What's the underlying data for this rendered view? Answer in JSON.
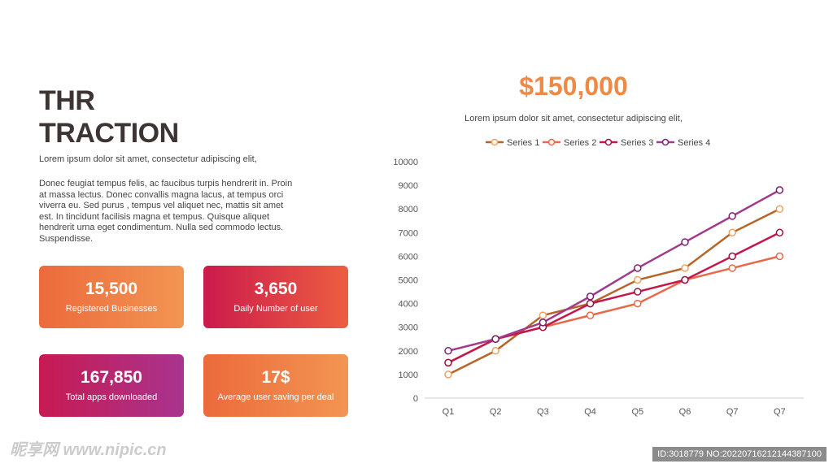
{
  "header": {
    "title_line1": "THR",
    "title_line2": "TRACTION",
    "subtitle": "Lorem ipsum dolor sit amet, consectetur adipiscing elit,",
    "body": "Donec feugiat tempus felis, ac faucibus turpis hendrerit in. Proin at massa lectus. Donec convallis magna lacus, at tempus orci viverra eu. Sed purus , tempus vel aliquet nec, mattis sit amet est. In tincidunt facilisis magna et tempus. Quisque aliquet hendrerit urna eget condimentum. Nulla sed commodo lectus. Suspendisse."
  },
  "cards": [
    {
      "value": "15,500",
      "label": "Registered Businesses"
    },
    {
      "value": "3,650",
      "label": "Daily Number of user"
    },
    {
      "value": "167,850",
      "label": "Total apps downloaded"
    },
    {
      "value": "17$",
      "label": "Average user saving per deal"
    }
  ],
  "highlight": {
    "amount": "$150,000",
    "text": "Lorem ipsum dolor sit amet, consectetur adipiscing elit,"
  },
  "watermark": {
    "logo": "昵享网 www.nipic.cn",
    "id": "ID:3018779 NO:20220716212144387100"
  },
  "chart_data": {
    "type": "line",
    "categories": [
      "Q1",
      "Q2",
      "Q3",
      "Q4",
      "Q5",
      "Q6",
      "Q7",
      "Q7"
    ],
    "ylim": [
      0,
      10000
    ],
    "yticks": [
      "0",
      "1000",
      "2000",
      "3000",
      "4000",
      "5000",
      "6000",
      "7000",
      "8000",
      "9000",
      "10000"
    ],
    "legend": "top",
    "series": [
      {
        "name": "Series 1",
        "color": "#b5652a",
        "marker": "#f0a060",
        "values": [
          1000,
          2000,
          3500,
          4000,
          5000,
          5500,
          7000,
          8000
        ]
      },
      {
        "name": "Series 2",
        "color": "#e8684a",
        "marker": "#e8684a",
        "values": [
          1500,
          2500,
          3000,
          3500,
          4000,
          5000,
          5500,
          6000
        ]
      },
      {
        "name": "Series 3",
        "color": "#c3174a",
        "marker": "#9b1040",
        "values": [
          1500,
          2500,
          3000,
          4000,
          4500,
          5000,
          6000,
          7000
        ]
      },
      {
        "name": "Series 4",
        "color": "#a23a8c",
        "marker": "#7a2070",
        "values": [
          2000,
          2500,
          3200,
          4300,
          5500,
          6600,
          7700,
          8800
        ]
      }
    ]
  }
}
